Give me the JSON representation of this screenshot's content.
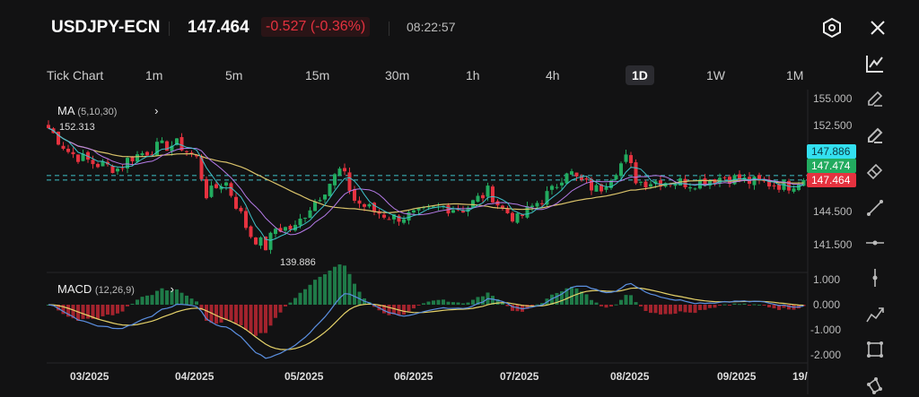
{
  "header": {
    "symbol": "USDJPY-ECN",
    "price": "147.464",
    "change": "-0.527 (-0.36%)",
    "time": "08:22:57",
    "settings_icon": "hexagon-settings-icon",
    "close_icon": "close-icon"
  },
  "timeframes": [
    {
      "label": "Tick Chart"
    },
    {
      "label": "1m"
    },
    {
      "label": "5m"
    },
    {
      "label": "15m"
    },
    {
      "label": "30m"
    },
    {
      "label": "1h"
    },
    {
      "label": "4h"
    },
    {
      "label": "1D",
      "active": true
    },
    {
      "label": "1W"
    },
    {
      "label": "1M"
    }
  ],
  "toolbar": [
    "chart-type-icon",
    "pencil-icon",
    "brush-icon",
    "eraser-icon",
    "trend-line-icon",
    "horizontal-line-icon",
    "vertical-line-icon",
    "polyline-icon",
    "rectangle-icon",
    "polygon-icon"
  ],
  "colors": {
    "up": "#22ab5f",
    "down": "#e5323f",
    "ma5": "#3fc1c9",
    "ma10": "#b57be8",
    "ma30": "#d9c26a",
    "macd": "#5b8fe0",
    "signal": "#e6d36a",
    "tag_cyan": "#33e0f0",
    "tag_green": "#22ab5f",
    "tag_red": "#e5323f"
  },
  "main": {
    "indicator_label": "MA",
    "indicator_params": "(5,10,30)",
    "high_label": "152.313",
    "low_label": "139.886",
    "price_ticks": [
      "155.000",
      "152.500",
      "144.500",
      "141.500"
    ],
    "tags": {
      "cyan": "147.886",
      "green": "147.474",
      "red": "147.464"
    }
  },
  "macd": {
    "label": "MACD",
    "params": "(12,26,9)",
    "ticks": [
      "1.000",
      "0.000",
      "-1.000",
      "-2.000"
    ]
  },
  "dates": [
    "03/2025",
    "04/2025",
    "05/2025",
    "06/2025",
    "07/2025",
    "08/2025",
    "09/2025",
    "19/"
  ],
  "chart_data": {
    "type": "candlestick",
    "timeframe": "1D",
    "y_range": [
      139,
      155.5
    ],
    "approx_closes": [
      [
        "2025-02-18",
        152.3
      ],
      [
        "2025-02-24",
        150.0
      ],
      [
        "2025-03-03",
        149.0
      ],
      [
        "2025-03-10",
        148.5
      ],
      [
        "2025-03-13",
        149.5
      ],
      [
        "2025-03-21",
        150.5
      ],
      [
        "2025-03-27",
        150.8
      ],
      [
        "2025-04-01",
        149.5
      ],
      [
        "2025-04-04",
        146.0
      ],
      [
        "2025-04-09",
        147.5
      ],
      [
        "2025-04-14",
        144.0
      ],
      [
        "2025-04-16",
        142.5
      ],
      [
        "2025-04-21",
        141.2
      ],
      [
        "2025-04-23",
        143.0
      ],
      [
        "2025-04-29",
        143.0
      ],
      [
        "2025-05-02",
        144.5
      ],
      [
        "2025-05-12",
        148.5
      ],
      [
        "2025-05-16",
        145.5
      ],
      [
        "2025-05-22",
        144.5
      ],
      [
        "2025-05-27",
        144.0
      ],
      [
        "2025-06-03",
        144.3
      ],
      [
        "2025-06-10",
        145.0
      ],
      [
        "2025-06-16",
        144.8
      ],
      [
        "2025-06-23",
        146.5
      ],
      [
        "2025-06-26",
        145.0
      ],
      [
        "2025-07-01",
        143.8
      ],
      [
        "2025-07-07",
        145.5
      ],
      [
        "2025-07-11",
        146.5
      ],
      [
        "2025-07-15",
        148.5
      ],
      [
        "2025-07-18",
        147.5
      ],
      [
        "2025-07-24",
        146.5
      ],
      [
        "2025-07-29",
        148.5
      ],
      [
        "2025-08-01",
        149.5
      ],
      [
        "2025-08-04",
        147.3
      ],
      [
        "2025-08-11",
        147.4
      ],
      [
        "2025-08-19",
        147.2
      ],
      [
        "2025-08-29",
        147.8
      ],
      [
        "2025-09-05",
        147.3
      ],
      [
        "2025-09-16",
        147.0
      ],
      [
        "2025-09-19",
        147.464
      ]
    ]
  }
}
